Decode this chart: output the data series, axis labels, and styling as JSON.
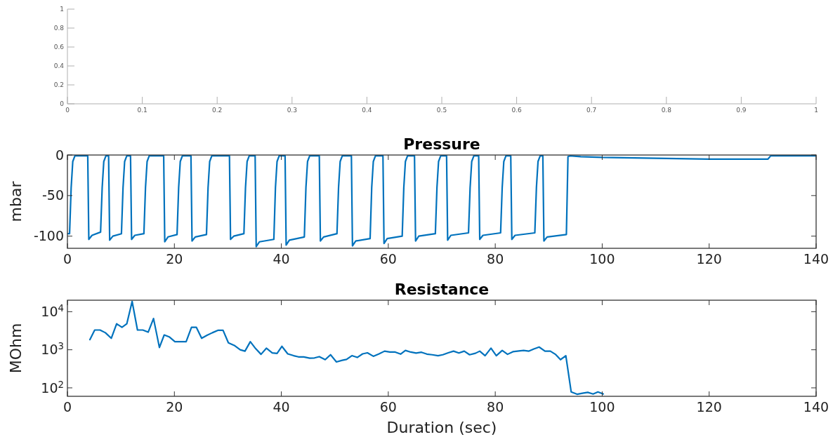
{
  "chart_data": [
    {
      "type": "line",
      "xlim": [
        0,
        1
      ],
      "xticks": [
        0,
        0.1,
        0.2,
        0.3,
        0.4,
        0.5,
        0.6,
        0.7,
        0.8,
        0.9,
        1
      ],
      "ylim": [
        0,
        1
      ],
      "yticks": [
        0,
        0.2,
        0.4,
        0.6,
        0.8,
        1
      ]
    },
    {
      "type": "line",
      "title": "Pressure",
      "ylabel": "mbar",
      "xlim": [
        0,
        140
      ],
      "xticks": [
        0,
        20,
        40,
        60,
        80,
        100,
        120,
        140
      ],
      "ylim": [
        -115,
        0
      ],
      "yticks": [
        -100,
        -50,
        0
      ],
      "series": [
        {
          "color": "#0072bd",
          "x": [
            0,
            0.4,
            0.7,
            1.0,
            1.4,
            3.8,
            4.0,
            4.6,
            6.2,
            6.5,
            6.8,
            7.2,
            7.7,
            7.9,
            8.5,
            10.1,
            10.4,
            10.7,
            11.1,
            11.8,
            12.0,
            12.6,
            14.3,
            14.6,
            14.9,
            15.3,
            18.0,
            18.2,
            18.8,
            20.5,
            20.8,
            21.1,
            21.5,
            23.1,
            23.3,
            23.9,
            26.0,
            26.3,
            26.6,
            27.0,
            30.3,
            30.5,
            31.1,
            33.0,
            33.3,
            33.6,
            34.0,
            35.1,
            35.3,
            35.9,
            38.6,
            38.9,
            39.2,
            39.6,
            40.7,
            40.9,
            41.5,
            44.3,
            44.6,
            44.9,
            45.3,
            47.1,
            47.3,
            47.9,
            50.4,
            50.7,
            51.0,
            51.4,
            53.1,
            53.3,
            53.9,
            56.6,
            56.9,
            57.2,
            57.6,
            59.0,
            59.2,
            59.8,
            62.6,
            62.9,
            63.2,
            63.6,
            64.9,
            65.1,
            65.7,
            68.8,
            69.1,
            69.4,
            69.8,
            70.9,
            71.1,
            71.7,
            75.0,
            75.3,
            75.6,
            76.0,
            76.9,
            77.1,
            77.7,
            81.0,
            81.3,
            81.6,
            82.0,
            82.9,
            83.1,
            83.7,
            87.4,
            87.7,
            88.0,
            88.4,
            88.9,
            89.1,
            89.7,
            93.3,
            93.6,
            94,
            96,
            100,
            110,
            120,
            131,
            131.5,
            140
          ],
          "values": [
            -97,
            -97,
            -40,
            -8,
            -1,
            -1,
            -104,
            -99,
            -95,
            -40,
            -8,
            -1,
            -1,
            -105,
            -100,
            -97,
            -40,
            -8,
            -1,
            -1,
            -104,
            -99,
            -97,
            -40,
            -8,
            -1,
            -1,
            -107,
            -101,
            -98,
            -40,
            -8,
            -1,
            -1,
            -106,
            -101,
            -98,
            -40,
            -8,
            -1,
            -1,
            -104,
            -100,
            -97,
            -40,
            -8,
            -1,
            -1,
            -113,
            -107,
            -104,
            -40,
            -8,
            -1,
            -1,
            -111,
            -105,
            -101,
            -40,
            -8,
            -1,
            -1,
            -106,
            -101,
            -97,
            -40,
            -8,
            -1,
            -1,
            -112,
            -106,
            -103,
            -40,
            -8,
            -1,
            -1,
            -109,
            -103,
            -100,
            -40,
            -8,
            -1,
            -1,
            -106,
            -100,
            -97,
            -40,
            -8,
            -1,
            -1,
            -105,
            -99,
            -96,
            -40,
            -8,
            -1,
            -1,
            -104,
            -99,
            -96,
            -40,
            -8,
            -1,
            -1,
            -104,
            -99,
            -96,
            -40,
            -8,
            -1,
            -1,
            -106,
            -101,
            -98,
            -2,
            -1,
            -2,
            -3,
            -4,
            -5,
            -5,
            -1,
            -1
          ]
        }
      ]
    },
    {
      "type": "line",
      "title": "Resistance",
      "xlabel": "Duration (sec)",
      "ylabel": "MOhm",
      "log": true,
      "xlim": [
        0,
        140
      ],
      "xticks": [
        0,
        20,
        40,
        60,
        80,
        100,
        120,
        140
      ],
      "ylim": [
        60,
        20000
      ],
      "yticks": [
        {
          "value": 100,
          "label": "10$^{2}$"
        },
        {
          "value": 1000,
          "label": "10$^{3}$"
        },
        {
          "value": 10000,
          "label": "10$^{4}$"
        }
      ],
      "series": [
        {
          "color": "#0072bd",
          "x": [
            4.2,
            5.1,
            6.1,
            7.1,
            8.2,
            9.2,
            10.2,
            11.1,
            12.1,
            13.1,
            14.1,
            15.1,
            16.1,
            17.2,
            18.1,
            19.1,
            20.1,
            22.2,
            23.2,
            24.1,
            25.1,
            26.1,
            27.1,
            28.2,
            29.1,
            30.1,
            31.2,
            32.3,
            33.2,
            34.2,
            35.2,
            36.2,
            37.2,
            38.3,
            39.2,
            40.1,
            41.2,
            42.3,
            43.2,
            44.2,
            45.3,
            46.2,
            47.1,
            48.2,
            49.2,
            50.3,
            51.4,
            52.2,
            53.2,
            54.2,
            55.2,
            56.1,
            57.2,
            58.2,
            59.3,
            60.3,
            61.3,
            62.3,
            63.2,
            64.2,
            65.2,
            66.2,
            67.2,
            68.2,
            69.3,
            70.2,
            71.2,
            72.2,
            73.2,
            74.2,
            75.2,
            76.3,
            77.1,
            78.1,
            79.2,
            80.2,
            81.3,
            82.3,
            83.3,
            84.4,
            85.3,
            86.3,
            87.3,
            88.2,
            89.3,
            90.3,
            91.3,
            92.2,
            93.2,
            94.2,
            95.3,
            96.3,
            97.3,
            98.3,
            99.2,
            100.2
          ],
          "values": [
            1850,
            3300,
            3300,
            2800,
            2000,
            4800,
            3900,
            4800,
            18600,
            3300,
            3300,
            2900,
            6600,
            1150,
            2450,
            2150,
            1630,
            1630,
            3900,
            3900,
            2000,
            2400,
            2800,
            3250,
            3250,
            1520,
            1300,
            1000,
            920,
            1630,
            1070,
            760,
            1100,
            830,
            800,
            1230,
            780,
            700,
            650,
            650,
            600,
            610,
            660,
            550,
            740,
            480,
            530,
            560,
            700,
            630,
            780,
            830,
            675,
            770,
            920,
            870,
            870,
            770,
            960,
            870,
            820,
            860,
            770,
            740,
            700,
            740,
            830,
            920,
            820,
            920,
            740,
            810,
            920,
            700,
            1100,
            700,
            960,
            760,
            890,
            930,
            960,
            920,
            1060,
            1180,
            920,
            920,
            750,
            550,
            700,
            78,
            68,
            72,
            76,
            69,
            78,
            69
          ]
        }
      ]
    }
  ]
}
